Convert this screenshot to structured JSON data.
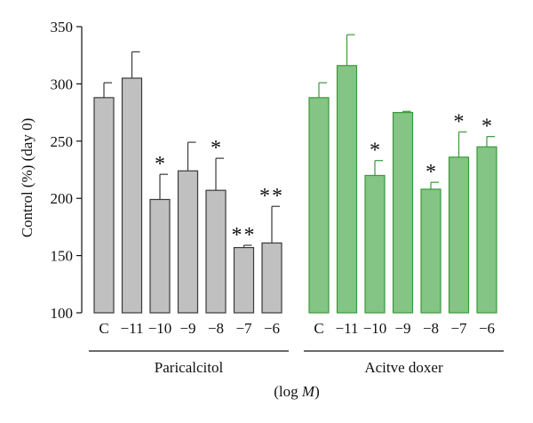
{
  "chart_data": {
    "type": "bar",
    "ylabel": "Control (%) (day 0)",
    "xlabel": "(log M)",
    "xlabel_parts": {
      "prefix": "(log ",
      "italic": "M",
      "suffix": ")"
    },
    "ylim": [
      100,
      350
    ],
    "yticks": [
      100,
      150,
      200,
      250,
      300,
      350
    ],
    "grid": false,
    "groups": [
      {
        "name": "Paricalcitol",
        "color": "#c0c0c0",
        "stroke": "#3a3a3a",
        "categories": [
          "C",
          "−11",
          "−10",
          "−9",
          "−8",
          "−7",
          "−6"
        ],
        "values": [
          288,
          305,
          199,
          224,
          207,
          157,
          161
        ],
        "errors": [
          13,
          23,
          22,
          25,
          28,
          2,
          32
        ],
        "significance": [
          "",
          "",
          "*",
          "",
          "*",
          "**",
          "**"
        ]
      },
      {
        "name": "Acitve doxer",
        "color": "#84c484",
        "stroke": "#3a9a3a",
        "categories": [
          "C",
          "−11",
          "−10",
          "−9",
          "−8",
          "−7",
          "−6"
        ],
        "values": [
          288,
          316,
          220,
          275,
          208,
          236,
          245
        ],
        "errors": [
          13,
          27,
          13,
          1,
          6,
          22,
          9
        ],
        "significance": [
          "",
          "",
          "*",
          "",
          "*",
          "*",
          "*"
        ]
      }
    ]
  }
}
